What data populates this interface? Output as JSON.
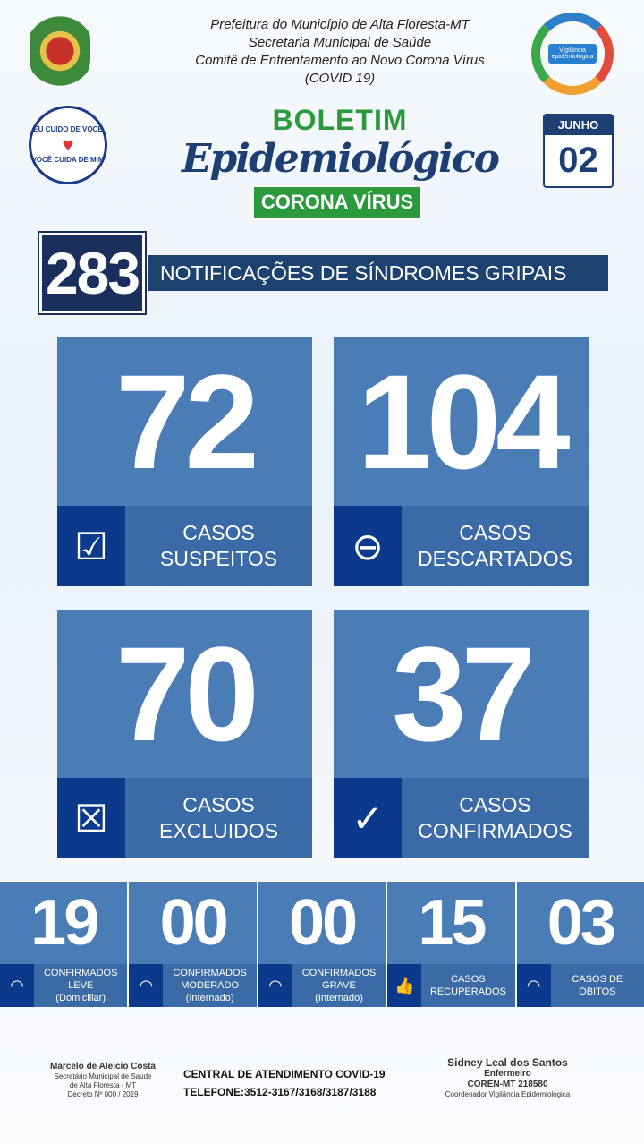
{
  "header": {
    "lines": [
      "Prefeitura do Município de Alta Floresta-MT",
      "Secretaria Municipal de Saúde",
      "Comitê de Enfrentamento ao Novo Corona Vírus",
      "(COVID 19)"
    ],
    "logo_right_text": "Vigilância epidemiológica"
  },
  "badge": {
    "top": "EU CUIDO DE VOCÊ",
    "bottom": "VOCÊ CUIDA DE MIM"
  },
  "title": {
    "line1": "BOLETIM",
    "line2": "Epidemiológico",
    "line3": "CORONA VÍRUS"
  },
  "date": {
    "month": "JUNHO",
    "day": "02"
  },
  "total": {
    "value": "283",
    "label": "NOTIFICAÇÕES DE SÍNDROMES GRIPAIS"
  },
  "cards": [
    {
      "value": "72",
      "l1": "CASOS",
      "l2": "SUSPEITOS",
      "icon": "checklist-icon"
    },
    {
      "value": "104",
      "l1": "CASOS",
      "l2": "DESCARTADOS",
      "icon": "minus-circle-icon"
    },
    {
      "value": "70",
      "l1": "CASOS",
      "l2": "EXCLUIDOS",
      "icon": "cross-box-icon"
    },
    {
      "value": "37",
      "l1": "CASOS",
      "l2": "CONFIRMADOS",
      "icon": "check-circle-icon"
    }
  ],
  "strip": [
    {
      "value": "19",
      "l1": "CONFIRMADOS",
      "l2": "LEVE",
      "l3": "(Domiciliar)",
      "icon": "gauge-icon"
    },
    {
      "value": "00",
      "l1": "CONFIRMADOS",
      "l2": "MODERADO",
      "l3": "(Internado)",
      "icon": "gauge-icon"
    },
    {
      "value": "00",
      "l1": "CONFIRMADOS",
      "l2": "GRAVE",
      "l3": "(Internado)",
      "icon": "gauge-icon"
    },
    {
      "value": "15",
      "l1": "CASOS",
      "l2": "RECUPERADOS",
      "l3": "",
      "icon": "thumbs-up-icon"
    },
    {
      "value": "03",
      "l1": "CASOS DE",
      "l2": "ÓBITOS",
      "l3": "",
      "icon": "gauge-icon"
    }
  ],
  "footer": {
    "left": [
      "Marcelo de Aleicio Costa",
      "Secretário Municipal de Saude",
      "de Alta Floresta - MT",
      "Decreto Nº 000 / 2019"
    ],
    "center": [
      "CENTRAL  DE ATENDIMENTO COVID-19",
      "TELEFONE:3512-3167/3168/3187/3188"
    ],
    "right": [
      "Sidney Leal dos Santos",
      "Enfermeiro",
      "COREN-MT 218580",
      "Coordenador Vigilância Epidemiologica"
    ]
  }
}
